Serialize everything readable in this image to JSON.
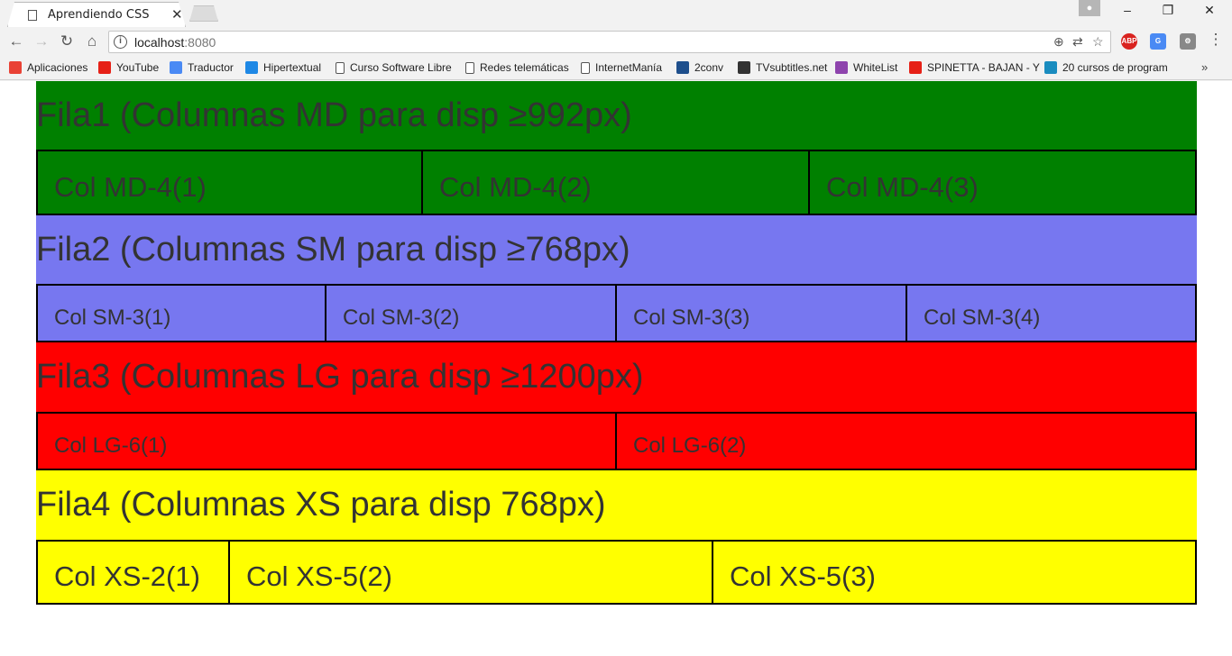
{
  "browser": {
    "tab_title": "Aprendiendo CSS",
    "url_host": "localhost",
    "url_port": ":8080",
    "bookmarks": [
      {
        "label": "Aplicaciones",
        "icon": "apps-grid-icon",
        "color": "#e94235"
      },
      {
        "label": "YouTube",
        "icon": "youtube-icon",
        "color": "#e62117"
      },
      {
        "label": "Traductor",
        "icon": "translate-icon",
        "color": "#4a8af4"
      },
      {
        "label": "Hipertextual",
        "icon": "hipertextual-icon",
        "color": "#1e88e5"
      },
      {
        "label": "Curso Software Libre",
        "icon": "page-icon",
        "color": "#ffffff"
      },
      {
        "label": "Redes telemáticas",
        "icon": "page-icon",
        "color": "#ffffff"
      },
      {
        "label": "InternetManía",
        "icon": "page-icon",
        "color": "#ffffff"
      },
      {
        "label": "2conv",
        "icon": "2conv-icon",
        "color": "#1e4f8c"
      },
      {
        "label": "TVsubtitles.net",
        "icon": "tvsubtitles-icon",
        "color": "#333333"
      },
      {
        "label": "WhiteList",
        "icon": "whitelist-icon",
        "color": "#8e44ad"
      },
      {
        "label": "SPINETTA - BAJAN - Y",
        "icon": "youtube-icon",
        "color": "#e62117"
      },
      {
        "label": "20 cursos de program",
        "icon": "tb-icon",
        "color": "#1a8cbf"
      }
    ],
    "more_bookmarks": "»"
  },
  "rows": [
    {
      "title": "Fila1 (Columnas MD para disp ≥992px)",
      "color": "#008000",
      "cols": [
        "Col MD-4(1)",
        "Col MD-4(2)",
        "Col MD-4(3)"
      ]
    },
    {
      "title": "Fila2 (Columnas SM para disp ≥768px)",
      "color": "#7777f0",
      "cols": [
        "Col SM-3(1)",
        "Col SM-3(2)",
        "Col SM-3(3)",
        "Col SM-3(4)"
      ]
    },
    {
      "title": "Fila3 (Columnas LG para disp ≥1200px)",
      "color": "#ff0000",
      "cols": [
        "Col LG-6(1)",
        "Col LG-6(2)"
      ]
    },
    {
      "title": "Fila4 (Columnas XS para disp 768px)",
      "color": "#ffff00",
      "cols": [
        "Col XS-2(1)",
        "Col XS-5(2)",
        "Col XS-5(3)"
      ]
    }
  ]
}
